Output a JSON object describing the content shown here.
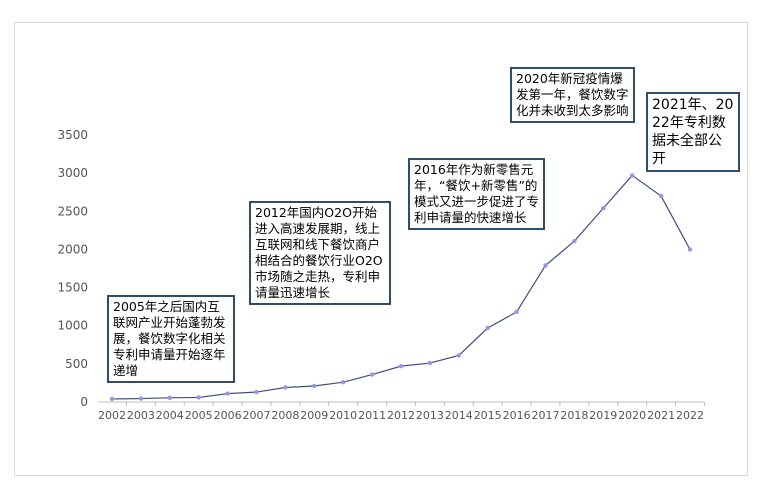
{
  "chart_data": {
    "type": "line",
    "title": "",
    "xlabel": "",
    "ylabel": "",
    "x": [
      "2002",
      "2003",
      "2004",
      "2005",
      "2006",
      "2007",
      "2008",
      "2009",
      "2010",
      "2011",
      "2012",
      "2013",
      "2014",
      "2015",
      "2016",
      "2017",
      "2018",
      "2019",
      "2020",
      "2021",
      "2022"
    ],
    "values": [
      40,
      45,
      55,
      60,
      110,
      130,
      190,
      210,
      260,
      360,
      470,
      510,
      610,
      970,
      1180,
      1790,
      2110,
      2540,
      2970,
      2700,
      2000
    ],
    "ylim": [
      0,
      3500
    ],
    "yticks": [
      "0",
      "500",
      "1000",
      "1500",
      "2000",
      "2500",
      "3000",
      "3500"
    ],
    "grid": false,
    "line_color": "#3d4f7c",
    "marker_color": "#9b93e6",
    "annotations": [
      {
        "id": "ann-2005",
        "text": "2005年之后国内互联网产业开始蓬勃发展，餐饮数字化相关专利申请量开始逐年递增"
      },
      {
        "id": "ann-2012",
        "text": "2012年国内O2O开始进入高速发展期，线上互联网和线下餐饮商户相结合的餐饮行业O2O市场随之走热，专利申请量迅速增长"
      },
      {
        "id": "ann-2016",
        "text": "2016年作为新零售元年，“餐饮+新零售”的模式又进一步促进了专利申请量的快速增长"
      },
      {
        "id": "ann-2020",
        "text": "2020年新冠疫情爆发第一年，餐饮数字化并未收到太多影响"
      },
      {
        "id": "ann-2021",
        "text": "2021年、2022年专利数据未全部公开"
      }
    ]
  }
}
